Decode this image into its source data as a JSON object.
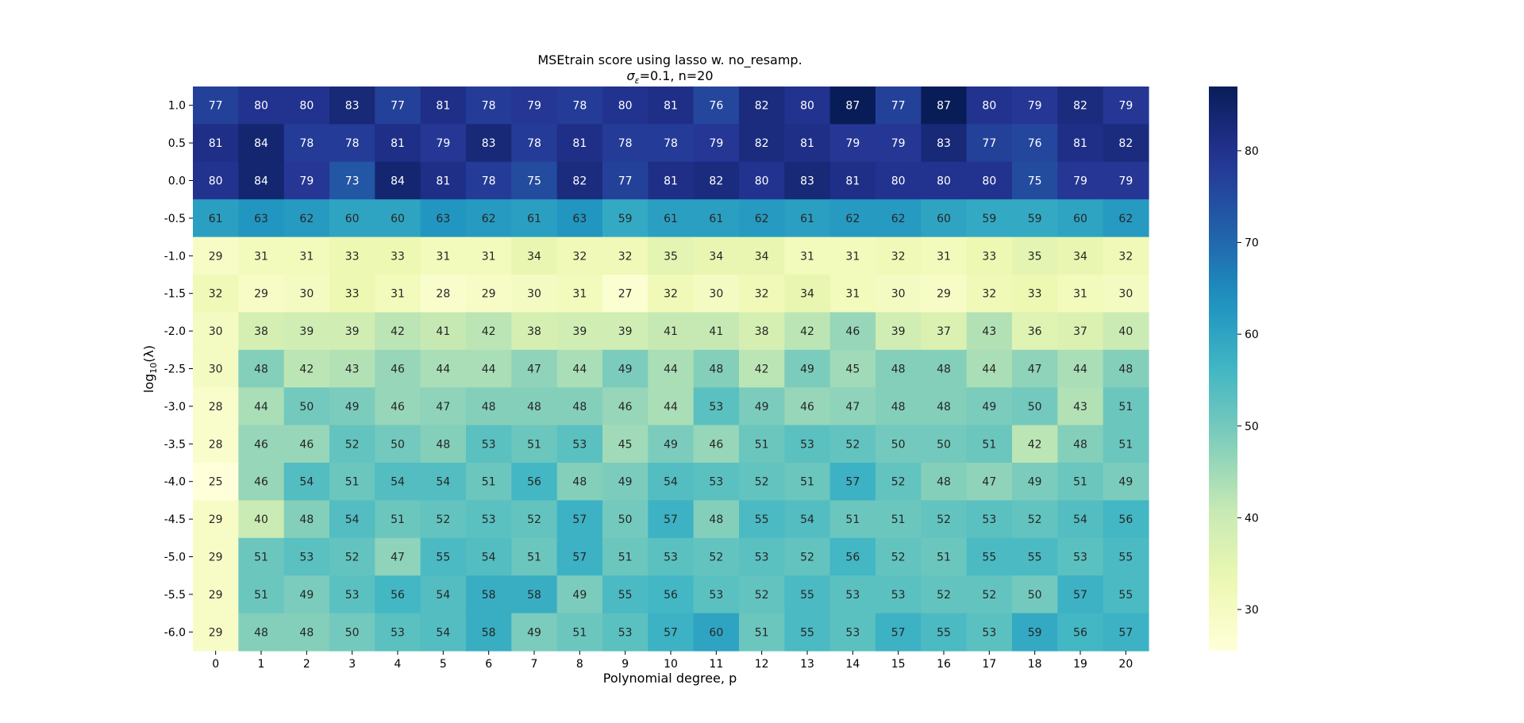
{
  "chart_data": {
    "type": "heatmap",
    "title_line1": "MSEtrain score using lasso w. no_resamp.",
    "title_line2": "σε=0.1,  n=20",
    "title_sigma": "σ",
    "title_eps": "ε",
    "title_rest": "=0.1,  n=20",
    "xlabel": "Polynomial degree, p",
    "ylabel": "log10(λ)",
    "ylabel_main": "log",
    "ylabel_sub": "10",
    "ylabel_tail": "(λ)",
    "x_ticks": [
      "0",
      "1",
      "2",
      "3",
      "4",
      "5",
      "6",
      "7",
      "8",
      "9",
      "10",
      "11",
      "12",
      "13",
      "14",
      "15",
      "16",
      "17",
      "18",
      "19",
      "20"
    ],
    "y_ticks": [
      "1.0",
      "0.5",
      "0.0",
      "-0.5",
      "-1.0",
      "-1.5",
      "-2.0",
      "-2.5",
      "-3.0",
      "-3.5",
      "-4.0",
      "-4.5",
      "-5.0",
      "-5.5",
      "-6.0"
    ],
    "values": [
      [
        77,
        80,
        80,
        83,
        77,
        81,
        78,
        79,
        78,
        80,
        81,
        76,
        82,
        80,
        87,
        77,
        87,
        80,
        79,
        82,
        79
      ],
      [
        81,
        84,
        78,
        78,
        81,
        79,
        83,
        78,
        81,
        78,
        78,
        79,
        82,
        81,
        79,
        79,
        83,
        77,
        76,
        81,
        82
      ],
      [
        80,
        84,
        79,
        73,
        84,
        81,
        78,
        75,
        82,
        77,
        81,
        82,
        80,
        83,
        81,
        80,
        80,
        80,
        75,
        79,
        79
      ],
      [
        61,
        63,
        62,
        60,
        60,
        63,
        62,
        61,
        63,
        59,
        61,
        61,
        62,
        61,
        62,
        62,
        60,
        59,
        59,
        60,
        62
      ],
      [
        29,
        31,
        31,
        33,
        33,
        31,
        31,
        34,
        32,
        32,
        35,
        34,
        34,
        31,
        31,
        32,
        31,
        33,
        35,
        34,
        32
      ],
      [
        32,
        29,
        30,
        33,
        31,
        28,
        29,
        30,
        31,
        27,
        32,
        30,
        32,
        34,
        31,
        30,
        29,
        32,
        33,
        31,
        30
      ],
      [
        30,
        38,
        39,
        39,
        42,
        41,
        42,
        38,
        39,
        39,
        41,
        41,
        38,
        42,
        46,
        39,
        37,
        43,
        36,
        37,
        40
      ],
      [
        30,
        48,
        42,
        43,
        46,
        44,
        44,
        47,
        44,
        49,
        44,
        48,
        42,
        49,
        45,
        48,
        48,
        44,
        47,
        44,
        48
      ],
      [
        28,
        44,
        50,
        49,
        46,
        47,
        48,
        48,
        48,
        46,
        44,
        53,
        49,
        46,
        47,
        48,
        48,
        49,
        50,
        43,
        51
      ],
      [
        28,
        46,
        46,
        52,
        50,
        48,
        53,
        51,
        53,
        45,
        49,
        46,
        51,
        53,
        52,
        50,
        50,
        51,
        42,
        48,
        51
      ],
      [
        25,
        46,
        54,
        51,
        54,
        54,
        51,
        56,
        48,
        49,
        54,
        53,
        52,
        51,
        57,
        52,
        48,
        47,
        49,
        51,
        49
      ],
      [
        29,
        40,
        48,
        54,
        51,
        52,
        53,
        52,
        57,
        50,
        57,
        48,
        55,
        54,
        51,
        51,
        52,
        53,
        52,
        54,
        56
      ],
      [
        29,
        51,
        53,
        52,
        47,
        55,
        54,
        51,
        57,
        51,
        53,
        52,
        53,
        52,
        56,
        52,
        51,
        55,
        55,
        53,
        55
      ],
      [
        29,
        51,
        49,
        53,
        56,
        54,
        58,
        58,
        49,
        55,
        56,
        53,
        52,
        55,
        53,
        53,
        52,
        52,
        50,
        57,
        55
      ],
      [
        29,
        48,
        48,
        50,
        53,
        54,
        58,
        49,
        51,
        53,
        57,
        60,
        51,
        55,
        53,
        57,
        55,
        53,
        59,
        56,
        57
      ]
    ],
    "colormap": "YlGnBu",
    "color_range": [
      25.5,
      87
    ],
    "colorbar_ticks": [
      "30",
      "40",
      "50",
      "60",
      "70",
      "80"
    ],
    "colorbar_tick_values": [
      30,
      40,
      50,
      60,
      70,
      80
    ]
  }
}
